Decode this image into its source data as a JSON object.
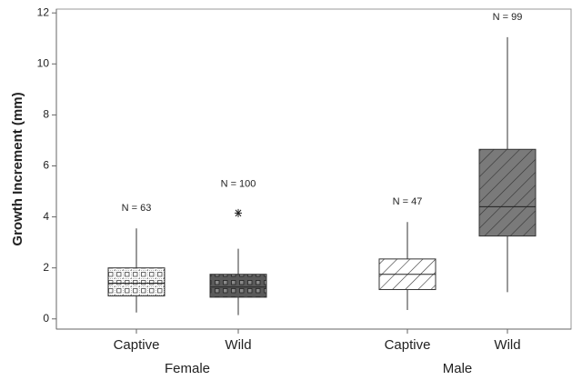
{
  "chart_data": {
    "type": "box",
    "ylabel": "Growth Increment (mm)",
    "categories": [
      "Captive",
      "Wild",
      "Captive",
      "Wild"
    ],
    "groups": [
      {
        "name": "Female",
        "members": [
          0,
          1
        ]
      },
      {
        "name": "Male",
        "members": [
          2,
          3
        ]
      }
    ],
    "n_labels": [
      "N = 63",
      "N = 100",
      "N = 47",
      "N = 99"
    ],
    "boxes": [
      {
        "whisker_low": 0.25,
        "q1": 0.9,
        "median": 1.4,
        "q3": 2.0,
        "whisker_high": 3.55,
        "outliers": []
      },
      {
        "whisker_low": 0.15,
        "q1": 0.85,
        "median": 1.25,
        "q3": 1.75,
        "whisker_high": 2.75,
        "outliers": [
          4.15
        ]
      },
      {
        "whisker_low": 0.35,
        "q1": 1.15,
        "median": 1.75,
        "q3": 2.35,
        "whisker_high": 3.8,
        "outliers": []
      },
      {
        "whisker_low": 1.05,
        "q1": 3.25,
        "median": 4.4,
        "q3": 6.65,
        "whisker_high": 11.05,
        "outliers": []
      }
    ],
    "colors": [
      "#ffffff",
      "#5a5a5a",
      "#ffffff",
      "#7a7a7a"
    ],
    "ylim": [
      -0.4,
      12.15
    ],
    "yticks": [
      0,
      2,
      4,
      6,
      8,
      10,
      12
    ],
    "grid": false
  }
}
